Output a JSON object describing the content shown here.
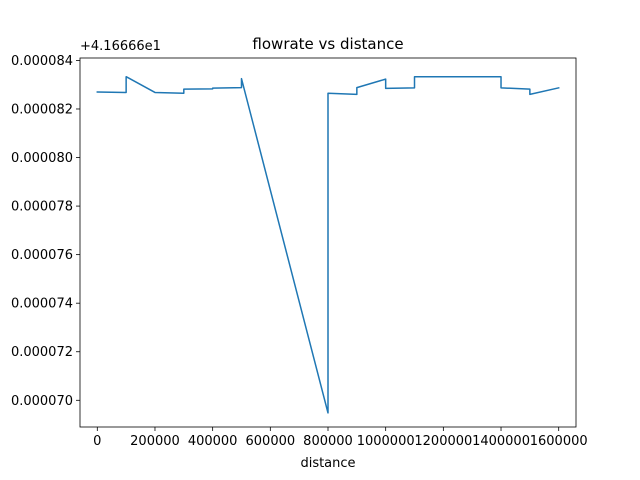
{
  "chart_data": {
    "type": "line",
    "title": "flowrate vs distance",
    "xlabel": "distance",
    "ylabel": "",
    "y_offset_label": "+4.16666e1",
    "xlim": [
      -60000,
      1660000
    ],
    "ylim": [
      6.89e-05,
      8.41e-05
    ],
    "x_ticks": [
      0,
      200000,
      400000,
      600000,
      800000,
      1000000,
      1200000,
      1400000,
      1600000
    ],
    "x_tick_labels": [
      "0",
      "200000",
      "400000",
      "600000",
      "800000",
      "1000000",
      "1200000",
      "1400000",
      "1600000"
    ],
    "y_ticks": [
      7e-05,
      7.2e-05,
      7.4e-05,
      7.6e-05,
      7.8e-05,
      8e-05,
      8.2e-05,
      8.4e-05
    ],
    "y_tick_labels": [
      "0.000070",
      "0.000072",
      "0.000074",
      "0.000076",
      "0.000078",
      "0.000080",
      "0.000082",
      "0.000084"
    ],
    "grid": false,
    "series": [
      {
        "color": "#1f77b4",
        "x": [
          0,
          100000,
          100000,
          200000,
          300000,
          300000,
          400000,
          400000,
          500000,
          500000,
          800000,
          800000,
          900000,
          900000,
          1000000,
          1000000,
          1100000,
          1100000,
          1400000,
          1400000,
          1500000,
          1500000,
          1600000
        ],
        "y": [
          8.27e-05,
          8.268e-05,
          8.333e-05,
          8.268e-05,
          8.265e-05,
          8.282e-05,
          8.283e-05,
          8.286e-05,
          8.288e-05,
          8.325e-05,
          6.948e-05,
          8.265e-05,
          8.26e-05,
          8.288e-05,
          8.323e-05,
          8.285e-05,
          8.287e-05,
          8.333e-05,
          8.333e-05,
          8.287e-05,
          8.282e-05,
          8.26e-05,
          8.287e-05
        ]
      }
    ]
  }
}
